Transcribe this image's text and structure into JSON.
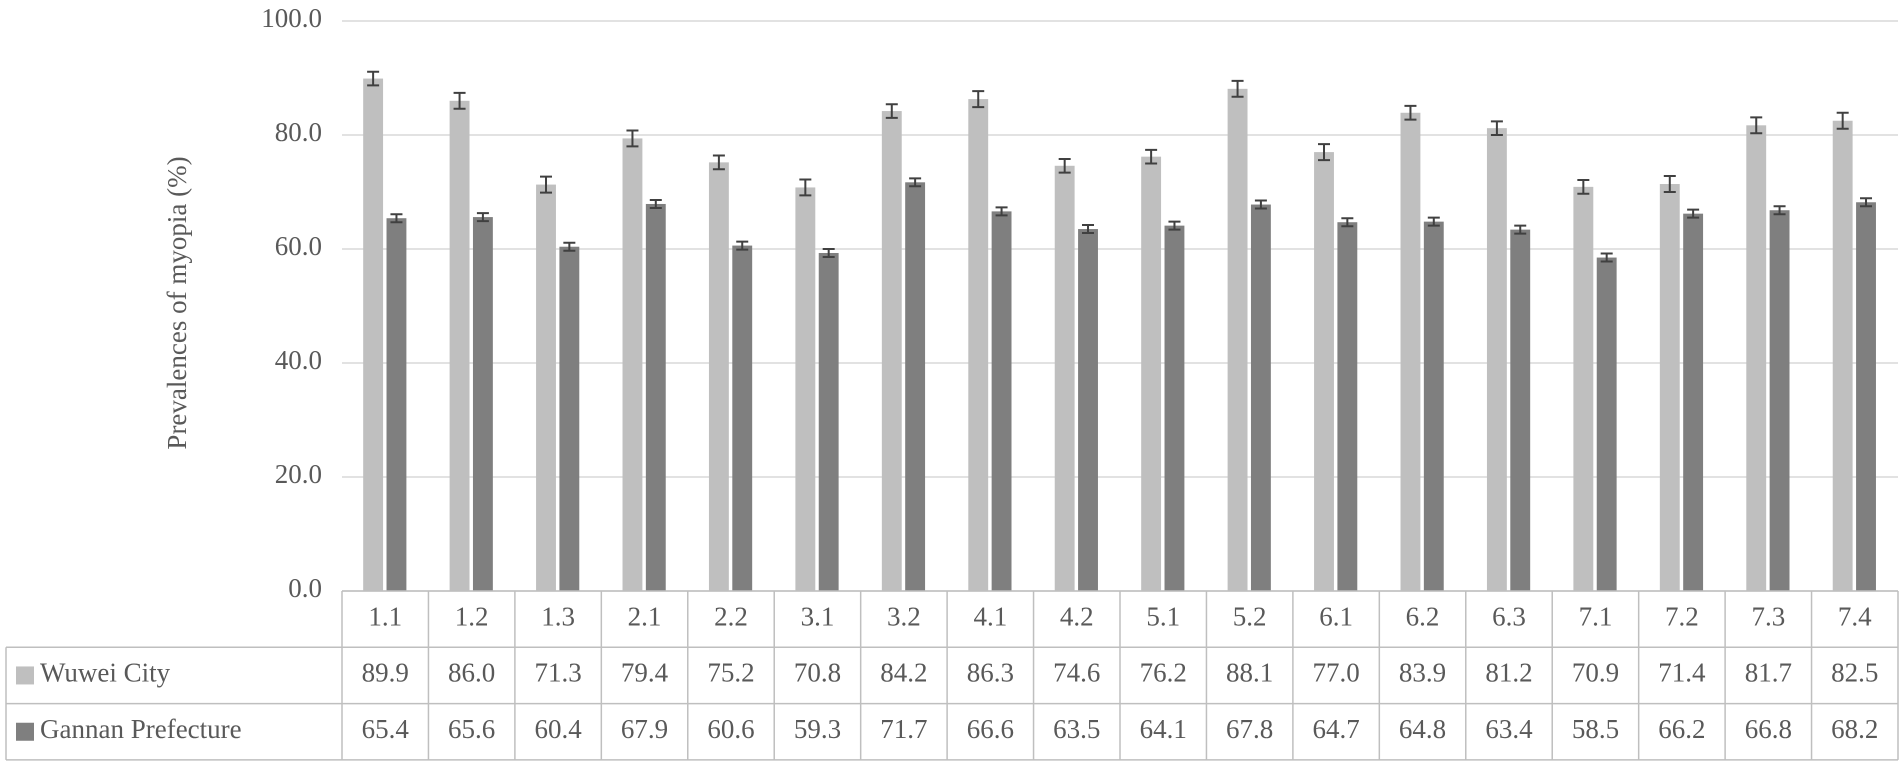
{
  "chart_data": {
    "type": "bar",
    "y_label": "Prevalences of myopia (%)",
    "categories": [
      "1.1",
      "1.2",
      "1.3",
      "2.1",
      "2.2",
      "3.1",
      "3.2",
      "4.1",
      "4.2",
      "5.1",
      "5.2",
      "6.1",
      "6.2",
      "6.3",
      "7.1",
      "7.2",
      "7.3",
      "7.4"
    ],
    "series": [
      {
        "name": "Wuwei City",
        "color": "#bfbfbf",
        "values": [
          89.9,
          86.0,
          71.3,
          79.4,
          75.2,
          70.8,
          84.2,
          86.3,
          74.6,
          76.2,
          88.1,
          77.0,
          83.9,
          81.2,
          70.9,
          71.4,
          81.7,
          82.5
        ],
        "value_labels": [
          "89.9",
          "86.0",
          "71.3",
          "79.4",
          "75.2",
          "70.8",
          "84.2",
          "86.3",
          "74.6",
          "76.2",
          "88.1",
          "77.0",
          "83.9",
          "81.2",
          "70.9",
          "71.4",
          "81.7",
          "82.5"
        ],
        "errors": [
          1.2,
          1.4,
          1.4,
          1.4,
          1.2,
          1.4,
          1.2,
          1.4,
          1.2,
          1.2,
          1.4,
          1.4,
          1.2,
          1.2,
          1.2,
          1.4,
          1.4,
          1.4
        ]
      },
      {
        "name": "Gannan Prefecture",
        "color": "#7f7f7f",
        "values": [
          65.4,
          65.6,
          60.4,
          67.9,
          60.6,
          59.3,
          71.7,
          66.6,
          63.5,
          64.1,
          67.8,
          64.7,
          64.8,
          63.4,
          58.5,
          66.2,
          66.8,
          68.2
        ],
        "value_labels": [
          "65.4",
          "65.6",
          "60.4",
          "67.9",
          "60.6",
          "59.3",
          "71.7",
          "66.6",
          "63.5",
          "64.1",
          "67.8",
          "64.7",
          "64.8",
          "63.4",
          "58.5",
          "66.2",
          "66.8",
          "68.2"
        ],
        "errors": [
          0.7,
          0.7,
          0.7,
          0.7,
          0.7,
          0.7,
          0.7,
          0.7,
          0.7,
          0.7,
          0.7,
          0.7,
          0.7,
          0.7,
          0.7,
          0.7,
          0.7,
          0.7
        ]
      }
    ],
    "ylim": [
      0,
      100
    ],
    "yticks": [
      {
        "value": 0,
        "label": "0.0"
      },
      {
        "value": 20,
        "label": "20.0"
      },
      {
        "value": 40,
        "label": "40.0"
      },
      {
        "value": 60,
        "label": "60.0"
      },
      {
        "value": 80,
        "label": "80.0"
      },
      {
        "value": 100,
        "label": "100.0"
      }
    ],
    "grid": true
  }
}
